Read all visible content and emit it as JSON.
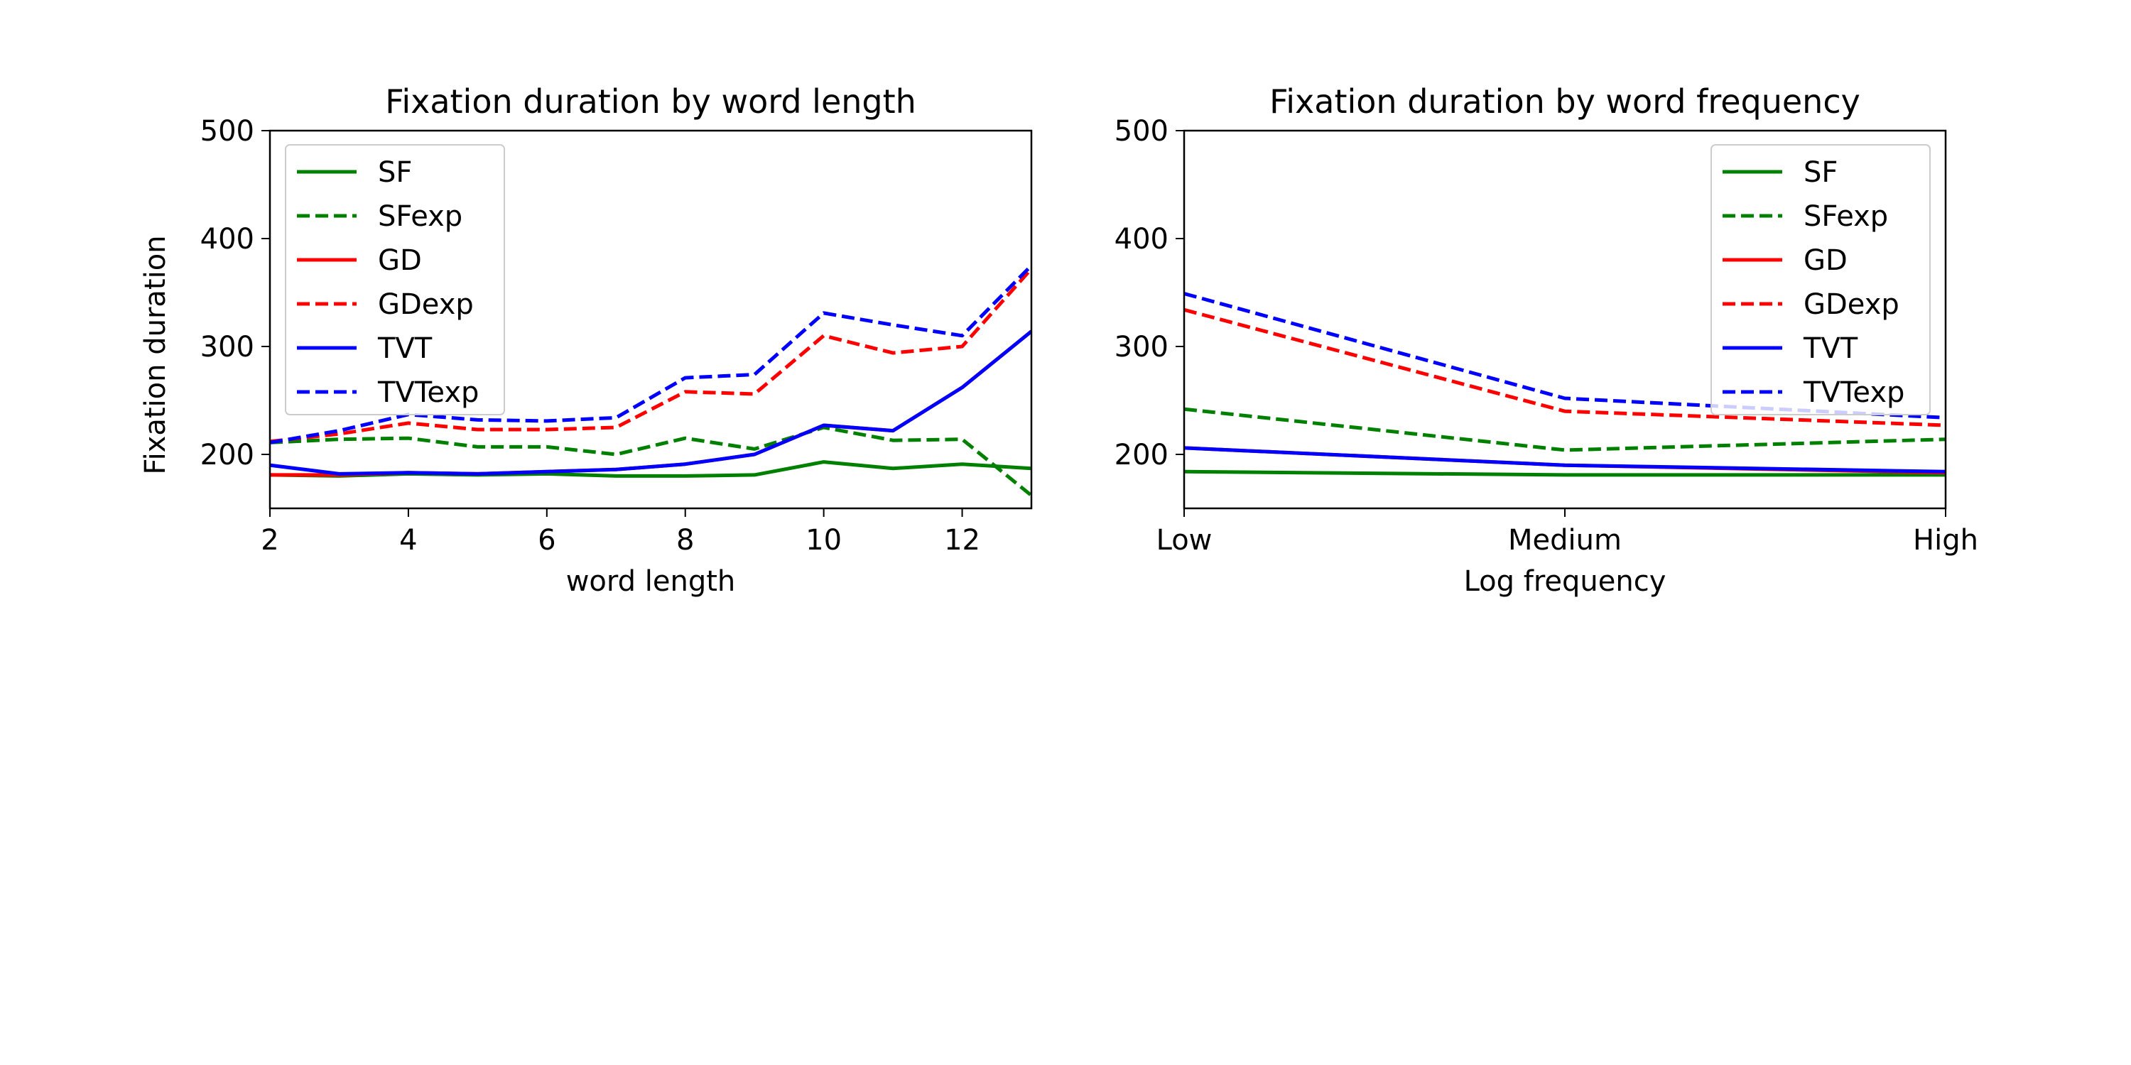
{
  "chart_data": [
    {
      "type": "line",
      "title": "Fixation duration by word length",
      "xlabel": "word length",
      "ylabel": "Fixation duration",
      "xlim": [
        2,
        13
      ],
      "ylim": [
        150,
        500
      ],
      "xticks": [
        2,
        4,
        6,
        8,
        10,
        12
      ],
      "yticks": [
        200,
        300,
        400,
        500
      ],
      "grid": false,
      "legend_position": "upper left",
      "x": [
        2,
        3,
        4,
        5,
        6,
        7,
        8,
        9,
        10,
        11,
        12,
        13
      ],
      "series": [
        {
          "name": "SF",
          "color": "#008000",
          "dashed": false,
          "values": [
            181,
            180,
            182,
            181,
            182,
            180,
            180,
            181,
            193,
            187,
            191,
            187
          ]
        },
        {
          "name": "SFexp",
          "color": "#008000",
          "dashed": true,
          "values": [
            211,
            214,
            215,
            207,
            207,
            200,
            215,
            205,
            225,
            213,
            214,
            162
          ]
        },
        {
          "name": "GD",
          "color": "#ff0000",
          "dashed": false,
          "values": [
            181,
            181,
            183,
            182,
            184,
            186,
            191,
            200,
            227,
            222,
            262,
            314
          ]
        },
        {
          "name": "GDexp",
          "color": "#ff0000",
          "dashed": true,
          "values": [
            212,
            219,
            229,
            223,
            223,
            225,
            258,
            256,
            310,
            294,
            300,
            372
          ]
        },
        {
          "name": "TVT",
          "color": "#0000ff",
          "dashed": false,
          "values": [
            190,
            182,
            183,
            182,
            184,
            186,
            191,
            200,
            227,
            222,
            262,
            314
          ]
        },
        {
          "name": "TVTexp",
          "color": "#0000ff",
          "dashed": true,
          "values": [
            211,
            222,
            237,
            232,
            231,
            234,
            271,
            274,
            331,
            320,
            310,
            375
          ]
        }
      ]
    },
    {
      "type": "line",
      "title": "Fixation duration by word frequency",
      "xlabel": "Log frequency",
      "ylabel": "",
      "categories": [
        "Low",
        "Medium",
        "High"
      ],
      "ylim": [
        150,
        500
      ],
      "yticks": [
        200,
        300,
        400,
        500
      ],
      "grid": false,
      "legend_position": "upper right",
      "series": [
        {
          "name": "SF",
          "color": "#008000",
          "dashed": false,
          "values": [
            184,
            181,
            181
          ]
        },
        {
          "name": "SFexp",
          "color": "#008000",
          "dashed": true,
          "values": [
            242,
            204,
            214
          ]
        },
        {
          "name": "GD",
          "color": "#ff0000",
          "dashed": false,
          "values": [
            206,
            190,
            183
          ]
        },
        {
          "name": "GDexp",
          "color": "#ff0000",
          "dashed": true,
          "values": [
            334,
            240,
            227
          ]
        },
        {
          "name": "TVT",
          "color": "#0000ff",
          "dashed": false,
          "values": [
            206,
            190,
            184
          ]
        },
        {
          "name": "TVTexp",
          "color": "#0000ff",
          "dashed": true,
          "values": [
            349,
            252,
            234
          ]
        }
      ]
    }
  ]
}
